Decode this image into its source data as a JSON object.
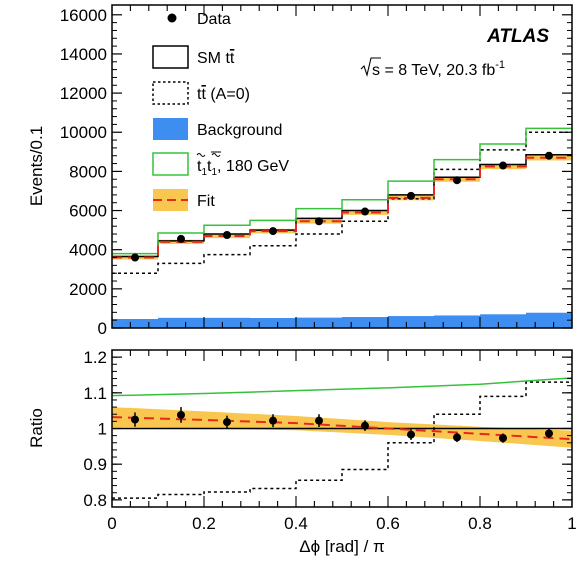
{
  "chart_data": [
    {
      "type": "line",
      "panel": "main",
      "ylabel": "Events/0.1",
      "ylim": [
        0,
        16500
      ],
      "yticks": [
        0,
        2000,
        4000,
        6000,
        8000,
        10000,
        12000,
        14000,
        16000
      ],
      "yticklabels": [
        "0",
        "2000",
        "4000",
        "6000",
        "8000",
        "10000",
        "12000",
        "14000",
        "16000"
      ],
      "bin_edges": [
        0,
        0.1,
        0.2,
        0.3,
        0.4,
        0.5,
        0.6,
        0.7,
        0.8,
        0.9,
        1.0
      ],
      "series": [
        {
          "name": "Data",
          "style": "points",
          "color": "#000000",
          "x": [
            0.05,
            0.15,
            0.25,
            0.35,
            0.45,
            0.55,
            0.65,
            0.75,
            0.85,
            0.95
          ],
          "values": [
            3600,
            4550,
            4750,
            4950,
            5450,
            5950,
            6750,
            7550,
            8300,
            8800
          ],
          "errors": [
            60,
            70,
            70,
            70,
            75,
            80,
            85,
            90,
            95,
            95
          ]
        },
        {
          "name": "SM t̅t̅",
          "style": "step",
          "color": "#000000",
          "values": [
            3650,
            4450,
            4800,
            5000,
            5600,
            6000,
            6800,
            7700,
            8350,
            8850
          ]
        },
        {
          "name": "t̅t (A=0)",
          "style": "step-dotted",
          "color": "#000000",
          "values": [
            2800,
            3300,
            3750,
            4200,
            4800,
            5450,
            6600,
            8100,
            9100,
            10000
          ]
        },
        {
          "name": "Background",
          "style": "filled",
          "color": "#3d8ef0",
          "values": [
            460,
            520,
            520,
            510,
            530,
            560,
            610,
            640,
            700,
            780
          ]
        },
        {
          "name": "t̃₁t̃₁, 180 GeV",
          "style": "step",
          "color": "#35c23a",
          "values": [
            3800,
            4850,
            5250,
            5500,
            6100,
            6550,
            7500,
            8600,
            9400,
            10200
          ]
        },
        {
          "name": "Fit",
          "style": "step-dashed-band",
          "color": "#e8281e",
          "band_color": "#f9c74f",
          "values": [
            3600,
            4400,
            4700,
            4950,
            5450,
            5900,
            6650,
            7600,
            8250,
            8700
          ],
          "band_half_width": [
            100,
            110,
            110,
            115,
            120,
            120,
            125,
            130,
            135,
            140
          ]
        }
      ],
      "legend": {
        "placement": "top-left",
        "entries": [
          "Data",
          "SM t̅t̅",
          "t̅t (A=0)",
          "Background",
          "t̃₁t̃₁, 180 GeV",
          "Fit"
        ]
      },
      "legend_labels": {
        "data": "Data",
        "sm": "SM t",
        "sm_bar": "t",
        "a0_prefix": "t",
        "a0_bar": "t",
        "a0_suffix": " (A=0)",
        "bkg": "Background",
        "stop_t": "t",
        "stop_sub": "1",
        "stop_suffix": ", 180 GeV",
        "fit": "Fit"
      },
      "annotations": {
        "experiment": "ATLAS",
        "energy_prefix": "s = 8 TeV, 20.3 fb",
        "energy_sup": "-1"
      }
    },
    {
      "type": "line",
      "panel": "ratio",
      "xlabel": "Δϕ [rad] / π",
      "ylabel": "Ratio",
      "xlim": [
        0,
        1
      ],
      "ylim": [
        0.78,
        1.22
      ],
      "xticks": [
        0,
        0.2,
        0.4,
        0.6,
        0.8,
        1
      ],
      "xticklabels": [
        "0",
        "0.2",
        "0.4",
        "0.6",
        "0.8",
        "1"
      ],
      "yticks": [
        0.8,
        0.9,
        1.0,
        1.1,
        1.2
      ],
      "yticklabels": [
        "0.8",
        "0.9",
        "1",
        "1.1",
        "1.2"
      ],
      "bin_edges": [
        0,
        0.1,
        0.2,
        0.3,
        0.4,
        0.5,
        0.6,
        0.7,
        0.8,
        0.9,
        1.0
      ],
      "series": [
        {
          "name": "Data",
          "style": "points",
          "x": [
            0.05,
            0.15,
            0.25,
            0.35,
            0.45,
            0.55,
            0.65,
            0.75,
            0.85,
            0.95
          ],
          "values": [
            1.025,
            1.038,
            1.018,
            1.022,
            1.022,
            1.008,
            0.983,
            0.975,
            0.973,
            0.986
          ],
          "errors": [
            0.02,
            0.022,
            0.018,
            0.018,
            0.018,
            0.015,
            0.015,
            0.013,
            0.013,
            0.013
          ]
        },
        {
          "name": "SM",
          "style": "step",
          "values": [
            1,
            1,
            1,
            1,
            1,
            1,
            1,
            1,
            1,
            1
          ]
        },
        {
          "name": "A=0",
          "style": "step-dotted",
          "values": [
            0.805,
            0.815,
            0.822,
            0.832,
            0.855,
            0.885,
            0.96,
            1.04,
            1.09,
            1.13
          ]
        },
        {
          "name": "stop 180 GeV",
          "style": "curve",
          "x": [
            0,
            0.2,
            0.4,
            0.6,
            0.8,
            1.0
          ],
          "values": [
            1.092,
            1.098,
            1.106,
            1.114,
            1.124,
            1.142
          ]
        },
        {
          "name": "Fit",
          "style": "dashed-band",
          "x": [
            0,
            0.2,
            0.4,
            0.6,
            0.8,
            1.0
          ],
          "values": [
            1.032,
            1.024,
            1.015,
            1.0,
            0.985,
            0.97
          ],
          "band_half_width": [
            0.028,
            0.024,
            0.02,
            0.018,
            0.02,
            0.024
          ]
        }
      ]
    }
  ]
}
